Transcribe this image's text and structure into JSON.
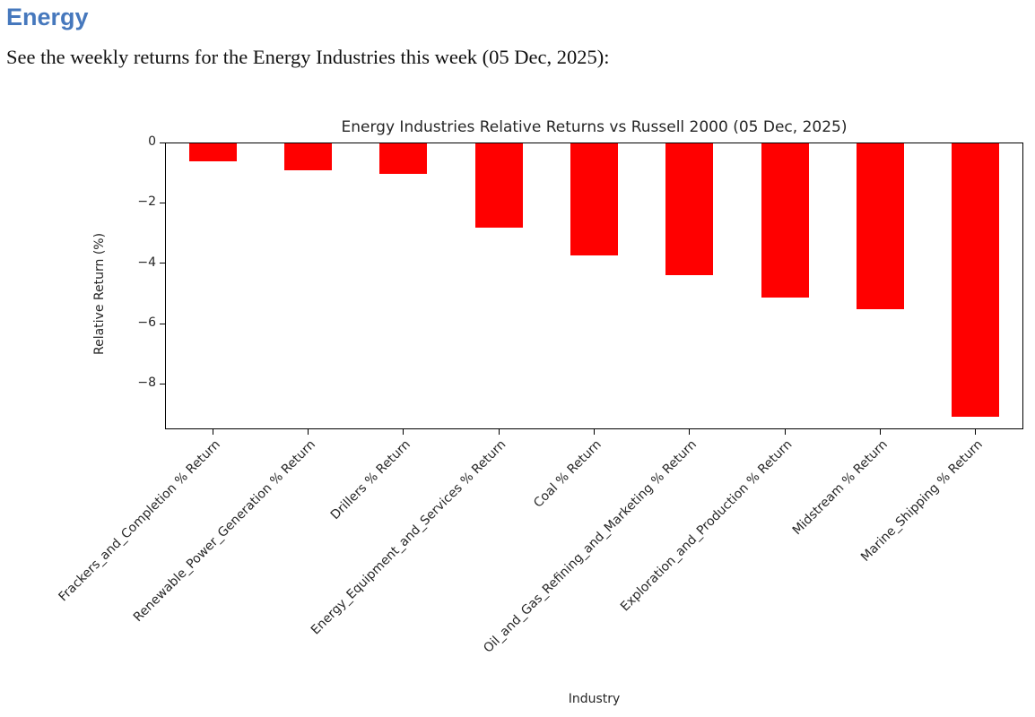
{
  "page": {
    "heading": "Energy",
    "subtitle": "See the weekly returns for the Energy Industries this week (05 Dec, 2025):"
  },
  "colors": {
    "heading_blue": "#4678BD",
    "bar_red": "#ff0000"
  },
  "chart_data": {
    "type": "bar",
    "title": "Energy Industries Relative Returns vs Russell 2000 (05 Dec, 2025)",
    "xlabel": "Industry",
    "ylabel": "Relative Return (%)",
    "categories": [
      "Frackers_and_Completion % Return",
      "Renewable_Power_Generation % Return",
      "Drillers % Return",
      "Energy_Equipment_and_Services % Return",
      "Coal % Return",
      "Oil_and_Gas_Refining_and_Marketing % Return",
      "Exploration_and_Production % Return",
      "Midstream % Return",
      "Marine_Shipping % Return"
    ],
    "values": [
      -0.6,
      -0.9,
      -1.0,
      -2.8,
      -3.7,
      -4.35,
      -5.1,
      -5.5,
      -9.05
    ],
    "bar_color": "#ff0000",
    "ylim": [
      -9.5,
      0
    ],
    "yticks": [
      0,
      -2,
      -4,
      -6,
      -8
    ],
    "grid": false,
    "tick_label_rotation": 45,
    "legend": null
  }
}
